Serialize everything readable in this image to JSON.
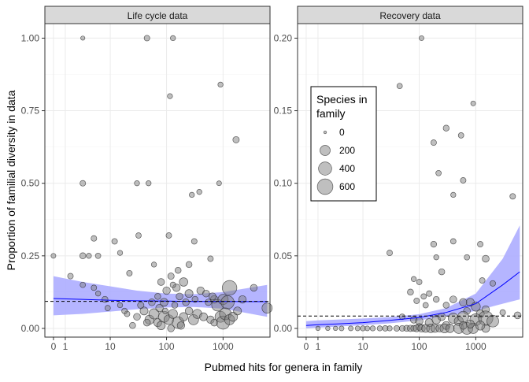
{
  "colors": {
    "ribbon": "#a8a8ff",
    "fit_line": "#0000ff",
    "point_fill": "#7f7f7f",
    "point_stroke": "#222222",
    "strip": "#d9d9d9",
    "grid": "#ebebeb"
  },
  "chart_data": {
    "type": "scatter",
    "xlabel": "Pubmed hits for genera in family",
    "ylabel": "Proportion of familial diversity in data",
    "x_scale": "pseudo-log",
    "x_ticks": [
      0,
      1,
      10,
      100,
      1000
    ],
    "x_tick_labels": [
      "0",
      "1",
      "10",
      "100",
      "1000"
    ],
    "xlim": [
      0,
      6000
    ],
    "grid": true,
    "legend": {
      "title": "Species in family",
      "title_lines": [
        "Species in",
        "family"
      ],
      "size_breaks": [
        0,
        200,
        400,
        600
      ],
      "labels": [
        "0",
        "200",
        "400",
        "600"
      ],
      "placement": "inside right panel, top-left"
    },
    "panels": [
      {
        "title": "Life cycle data",
        "ylim": [
          -0.03,
          1.05
        ],
        "y_ticks": [
          0,
          0.25,
          0.5,
          0.75,
          1
        ],
        "y_tick_labels": [
          "0.00",
          "0.25",
          "0.50",
          "0.75",
          "1.00"
        ],
        "mean_line": 0.093,
        "fit": {
          "x": [
            0,
            3,
            10,
            30,
            100,
            300,
            1000,
            6000
          ],
          "y": [
            0.103,
            0.1,
            0.097,
            0.095,
            0.094,
            0.093,
            0.093,
            0.092
          ]
        },
        "ribbon": {
          "x": [
            0,
            3,
            10,
            30,
            100,
            300,
            1000,
            6000
          ],
          "lo": [
            0.045,
            0.05,
            0.058,
            0.066,
            0.072,
            0.074,
            0.068,
            0.04
          ],
          "hi": [
            0.18,
            0.16,
            0.145,
            0.13,
            0.12,
            0.118,
            0.125,
            0.15
          ]
        },
        "points": [
          [
            0,
            0.25,
            15
          ],
          [
            3,
            1.0,
            8
          ],
          [
            3,
            0.5,
            30
          ],
          [
            3,
            0.25,
            40
          ],
          [
            3,
            0.15,
            25
          ],
          [
            4,
            0.25,
            20
          ],
          [
            5,
            0.31,
            30
          ],
          [
            6,
            0.25,
            25
          ],
          [
            1.5,
            0.18,
            30
          ],
          [
            5,
            0.14,
            25
          ],
          [
            6,
            0.12,
            20
          ],
          [
            8,
            0.1,
            40
          ],
          [
            12,
            0.3,
            30
          ],
          [
            15,
            0.26,
            20
          ],
          [
            9,
            0.07,
            25
          ],
          [
            30,
            0.5,
            20
          ],
          [
            45,
            1.0,
            30
          ],
          [
            48,
            0.5,
            20
          ],
          [
            130,
            1.0,
            20
          ],
          [
            115,
            0.8,
            20
          ],
          [
            900,
            0.84,
            20
          ],
          [
            1700,
            0.65,
            50
          ],
          [
            850,
            0.5,
            15
          ],
          [
            280,
            0.46,
            20
          ],
          [
            380,
            0.47,
            20
          ],
          [
            110,
            0.32,
            30
          ],
          [
            310,
            0.3,
            30
          ],
          [
            32,
            0.32,
            25
          ],
          [
            22,
            0.19,
            30
          ],
          [
            60,
            0.22,
            20
          ],
          [
            250,
            0.22,
            40
          ],
          [
            600,
            0.24,
            30
          ],
          [
            120,
            0.18,
            50
          ],
          [
            150,
            0.14,
            80
          ],
          [
            160,
            0.2,
            40
          ],
          [
            200,
            0.16,
            120
          ],
          [
            80,
            0.16,
            60
          ],
          [
            100,
            0.13,
            80
          ],
          [
            130,
            0.15,
            30
          ],
          [
            170,
            0.11,
            60
          ],
          [
            70,
            0.11,
            40
          ],
          [
            90,
            0.09,
            100
          ],
          [
            250,
            0.12,
            100
          ],
          [
            400,
            0.13,
            80
          ],
          [
            500,
            0.12,
            60
          ],
          [
            1300,
            0.14,
            520
          ],
          [
            700,
            0.1,
            90
          ],
          [
            800,
            0.08,
            300
          ],
          [
            1000,
            0.1,
            200
          ],
          [
            1200,
            0.09,
            400
          ],
          [
            3500,
            0.14,
            60
          ],
          [
            20,
            0.05,
            30
          ],
          [
            30,
            0.04,
            60
          ],
          [
            40,
            0.06,
            100
          ],
          [
            50,
            0.03,
            150
          ],
          [
            60,
            0.05,
            200
          ],
          [
            70,
            0.02,
            100
          ],
          [
            90,
            0.04,
            250
          ],
          [
            110,
            0.03,
            180
          ],
          [
            130,
            0.05,
            150
          ],
          [
            160,
            0.02,
            300
          ],
          [
            200,
            0.04,
            120
          ],
          [
            250,
            0.06,
            80
          ],
          [
            300,
            0.03,
            200
          ],
          [
            350,
            0.05,
            150
          ],
          [
            450,
            0.04,
            100
          ],
          [
            600,
            0.03,
            80
          ],
          [
            700,
            0.02,
            60
          ],
          [
            900,
            0.04,
            250
          ],
          [
            1000,
            0.02,
            400
          ],
          [
            1100,
            0.05,
            300
          ],
          [
            1300,
            0.03,
            200
          ],
          [
            1500,
            0.04,
            150
          ],
          [
            6000,
            0.07,
            200
          ],
          [
            25,
            0.01,
            40
          ],
          [
            45,
            0.02,
            60
          ],
          [
            80,
            0.01,
            120
          ],
          [
            120,
            0.0,
            60
          ],
          [
            180,
            0.01,
            80
          ],
          [
            15,
            0.08,
            20
          ],
          [
            18,
            0.06,
            30
          ],
          [
            35,
            0.08,
            50
          ],
          [
            55,
            0.09,
            60
          ],
          [
            75,
            0.07,
            80
          ],
          [
            95,
            0.06,
            30
          ],
          [
            140,
            0.08,
            40
          ],
          [
            220,
            0.09,
            60
          ],
          [
            320,
            0.1,
            40
          ],
          [
            550,
            0.09,
            50
          ],
          [
            650,
            0.11,
            70
          ],
          [
            1800,
            0.06,
            100
          ],
          [
            2200,
            0.1,
            80
          ]
        ]
      },
      {
        "title": "Recovery data",
        "ylim": [
          -0.006,
          0.21
        ],
        "y_ticks": [
          0,
          0.05,
          0.1,
          0.15,
          0.2
        ],
        "y_tick_labels": [
          "0.00",
          "0.05",
          "0.10",
          "0.15",
          "0.20"
        ],
        "mean_line": 0.0085,
        "fit": {
          "x": [
            0,
            1,
            3,
            10,
            30,
            100,
            300,
            1000,
            3000,
            6000
          ],
          "y": [
            0.002,
            0.0025,
            0.003,
            0.004,
            0.0055,
            0.0075,
            0.011,
            0.017,
            0.03,
            0.039
          ]
        },
        "ribbon": {
          "x": [
            0,
            1,
            3,
            10,
            30,
            100,
            300,
            1000,
            3000,
            6000
          ],
          "lo": [
            0.0,
            0.0005,
            0.0012,
            0.0022,
            0.0035,
            0.0055,
            0.0085,
            0.012,
            0.017,
            0.02
          ],
          "hi": [
            0.005,
            0.0055,
            0.006,
            0.0068,
            0.0078,
            0.0098,
            0.014,
            0.024,
            0.048,
            0.071
          ]
        },
        "points": [
          [
            110,
            0.2,
            15
          ],
          [
            45,
            0.167,
            25
          ],
          [
            900,
            0.155,
            15
          ],
          [
            300,
            0.138,
            35
          ],
          [
            550,
            0.133,
            25
          ],
          [
            180,
            0.128,
            30
          ],
          [
            220,
            0.107,
            25
          ],
          [
            600,
            0.102,
            30
          ],
          [
            400,
            0.092,
            20
          ],
          [
            4500,
            0.091,
            30
          ],
          [
            30,
            0.052,
            30
          ],
          [
            180,
            0.058,
            35
          ],
          [
            400,
            0.06,
            25
          ],
          [
            1200,
            0.058,
            30
          ],
          [
            200,
            0.049,
            20
          ],
          [
            250,
            0.039,
            40
          ],
          [
            700,
            0.049,
            25
          ],
          [
            1500,
            0.048,
            60
          ],
          [
            80,
            0.034,
            20
          ],
          [
            1300,
            0.033,
            30
          ],
          [
            100,
            0.032,
            25
          ],
          [
            2000,
            0.031,
            30
          ],
          [
            70,
            0.025,
            40
          ],
          [
            150,
            0.024,
            30
          ],
          [
            120,
            0.022,
            25
          ],
          [
            200,
            0.02,
            35
          ],
          [
            400,
            0.02,
            60
          ],
          [
            600,
            0.018,
            80
          ],
          [
            800,
            0.018,
            100
          ],
          [
            1000,
            0.015,
            150
          ],
          [
            90,
            0.019,
            30
          ],
          [
            130,
            0.016,
            25
          ],
          [
            300,
            0.016,
            40
          ],
          [
            700,
            0.012,
            60
          ],
          [
            1200,
            0.01,
            100
          ],
          [
            1500,
            0.013,
            80
          ],
          [
            5500,
            0.009,
            60
          ],
          [
            3000,
            0.011,
            30
          ],
          [
            50,
            0.008,
            30
          ],
          [
            80,
            0.006,
            60
          ],
          [
            100,
            0.005,
            80
          ],
          [
            150,
            0.004,
            100
          ],
          [
            200,
            0.006,
            120
          ],
          [
            250,
            0.008,
            80
          ],
          [
            400,
            0.007,
            200
          ],
          [
            500,
            0.005,
            150
          ],
          [
            600,
            0.008,
            250
          ],
          [
            1000,
            0.006,
            300
          ],
          [
            1500,
            0.007,
            500
          ],
          [
            2000,
            0.005,
            300
          ],
          [
            300,
            0.002,
            100
          ],
          [
            100,
            0.001,
            60
          ],
          [
            40,
            0.0,
            30
          ],
          [
            60,
            0.0,
            40
          ],
          [
            70,
            0.0,
            50
          ],
          [
            80,
            0.0,
            40
          ],
          [
            90,
            0.0,
            60
          ],
          [
            110,
            0.0,
            80
          ],
          [
            130,
            0.0,
            100
          ],
          [
            160,
            0.0,
            120
          ],
          [
            190,
            0.0,
            100
          ],
          [
            230,
            0.0,
            80
          ],
          [
            280,
            0.0,
            150
          ],
          [
            350,
            0.0,
            120
          ],
          [
            500,
            0.0,
            200
          ],
          [
            700,
            0.0,
            300
          ],
          [
            900,
            0.0,
            200
          ],
          [
            30,
            0.0,
            20
          ],
          [
            20,
            0.0,
            20
          ],
          [
            15,
            0.0,
            20
          ],
          [
            10,
            0.0,
            20
          ],
          [
            6,
            0.0,
            15
          ],
          [
            4,
            0.0,
            15
          ],
          [
            3,
            0.0,
            10
          ],
          [
            1,
            0.0,
            10
          ],
          [
            2,
            0.0,
            10
          ],
          [
            8,
            0.0,
            15
          ],
          [
            12,
            0.0,
            15
          ],
          [
            25,
            0.0,
            25
          ],
          [
            50,
            0.0,
            30
          ],
          [
            1500,
            0.0,
            100
          ],
          [
            1200,
            0.002,
            150
          ],
          [
            800,
            0.003,
            100
          ],
          [
            600,
            0.002,
            80
          ]
        ]
      }
    ]
  }
}
